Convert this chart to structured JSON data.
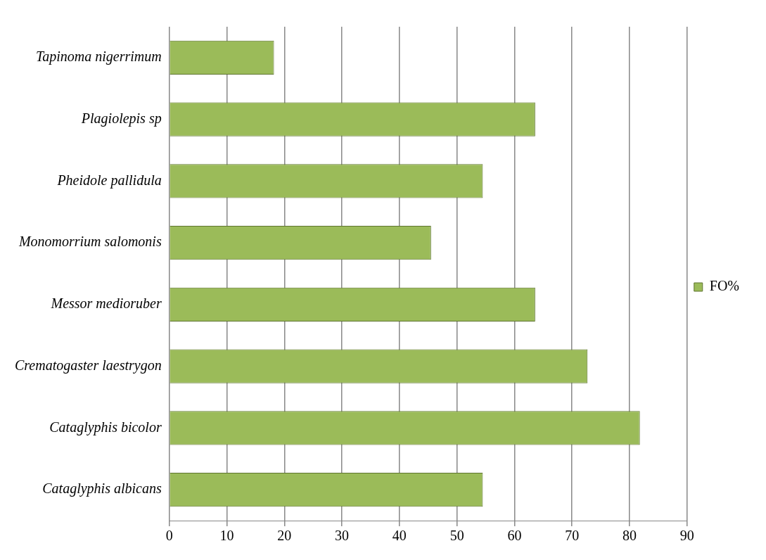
{
  "chart_data": {
    "type": "bar",
    "orientation": "horizontal",
    "categories": [
      "Tapinoma nigerrimum",
      "Plagiolepis sp",
      "Pheidole pallidula",
      "Monomorrium salomonis",
      "Messor medioruber",
      "Crematogaster laestrygon",
      "Cataglyphis bicolor",
      "Cataglyphis albicans"
    ],
    "series": [
      {
        "name": "FO%",
        "color": "#9bbb59",
        "values": [
          18.2,
          63.6,
          54.5,
          45.5,
          63.6,
          72.7,
          81.8,
          54.5
        ]
      }
    ],
    "xlim": [
      0,
      90
    ],
    "xticks": [
      0,
      10,
      20,
      30,
      40,
      50,
      60,
      70,
      80,
      90
    ],
    "grid": "x",
    "legend": "right"
  }
}
